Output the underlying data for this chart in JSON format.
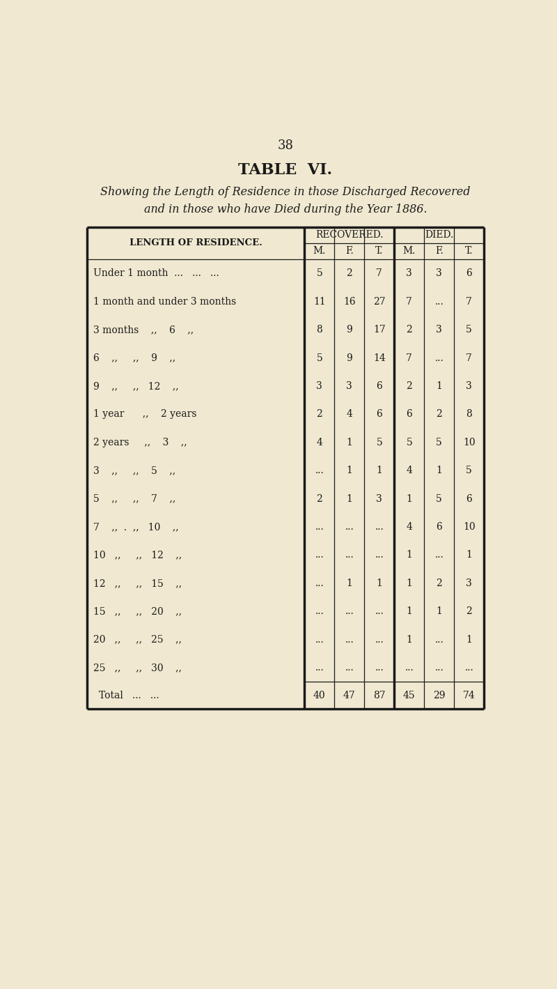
{
  "page_number": "38",
  "title": "TABLE  VI.",
  "subtitle_line1": "Showing the Length of Residence in those Discharged Recovered",
  "subtitle_line2": "and in those who have Died during the Year 1886.",
  "header_col": "LENGTH OF RESIDENCE.",
  "header_recovered": "RECOVERED.",
  "header_died": "DIED.",
  "sub_headers": [
    "M.",
    "F.",
    "T.",
    "M.",
    "F.",
    "T."
  ],
  "row_labels": [
    "Under 1 month  ...   ...   ...",
    "1 month and under 3 months",
    "3 months    ,,    6    ,,",
    "6    ,,     ,,    9    ,,",
    "9    ,,     ,,   12    ,,",
    "1 year      ,,    2 years",
    "2 years     ,,    3    ,,",
    "3    ,,     ,,    5    ,,",
    "5    ,,     ,,    7    ,,",
    "7    ,,  .  ,,   10    ,,",
    "10   ,,     ,,   12    ,,",
    "12   ,,     ,,   15    ,,",
    "15   ,,     ,,   20    ,,",
    "20   ,,     ,,   25    ,,",
    "25   ,,     ,,   30    ,,"
  ],
  "row_vals": [
    [
      "5",
      "2",
      "7",
      "3",
      "3",
      "6"
    ],
    [
      "11",
      "16",
      "27",
      "7",
      "...",
      "7"
    ],
    [
      "8",
      "9",
      "17",
      "2",
      "3",
      "5"
    ],
    [
      "5",
      "9",
      "14",
      "7",
      "...",
      "7"
    ],
    [
      "3",
      "3",
      "6",
      "2",
      "1",
      "3"
    ],
    [
      "2",
      "4",
      "6",
      "6",
      "2",
      "8"
    ],
    [
      "4",
      "1",
      "5",
      "5",
      "5",
      "10"
    ],
    [
      "...",
      "1",
      "1",
      "4",
      "1",
      "5"
    ],
    [
      "2",
      "1",
      "3",
      "1",
      "5",
      "6"
    ],
    [
      "...",
      "...",
      "...",
      "4",
      "6",
      "10"
    ],
    [
      "...",
      "...",
      "...",
      "1",
      "...",
      "1"
    ],
    [
      "...",
      "1",
      "1",
      "1",
      "2",
      "3"
    ],
    [
      "...",
      "...",
      "...",
      "1",
      "1",
      "2"
    ],
    [
      "...",
      "...",
      "...",
      "1",
      "...",
      "1"
    ],
    [
      "...",
      "...",
      "...",
      "...",
      "...",
      "..."
    ]
  ],
  "total_label": "Total   ...   ...",
  "total_vals": [
    "40",
    "47",
    "87",
    "45",
    "29",
    "74"
  ],
  "bg_color": "#f0e8d0",
  "text_color": "#1a1a1a",
  "line_color": "#1a1a1a"
}
